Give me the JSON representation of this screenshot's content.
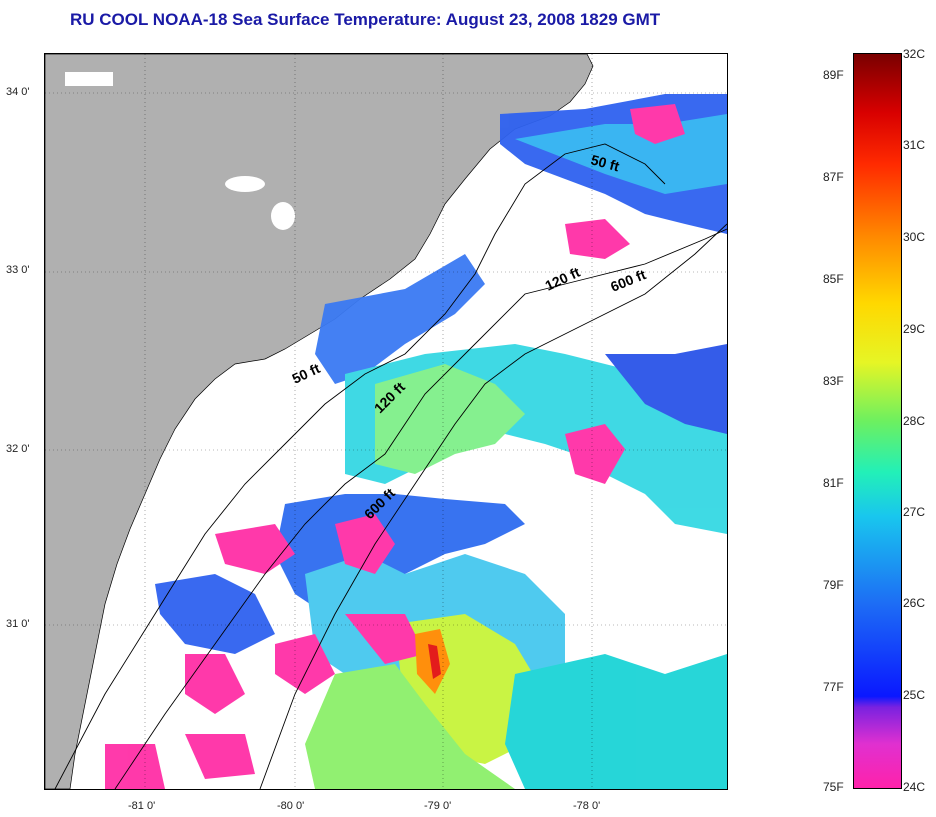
{
  "title": "RU COOL  NOAA-18  Sea Surface Temperature:  August 23, 2008 1829 GMT",
  "map": {
    "lat_labels": [
      "34 0'",
      "33 0'",
      "32 0'",
      "31 0'"
    ],
    "lon_labels": [
      "-81 0'",
      "-80 0'",
      "-79 0'",
      "-78 0'"
    ],
    "contours": [
      {
        "label": "50 ft",
        "depth_ft": 50
      },
      {
        "label": "50 ft",
        "depth_ft": 50
      },
      {
        "label": "120 ft",
        "depth_ft": 120
      },
      {
        "label": "120 ft",
        "depth_ft": 120
      },
      {
        "label": "600 ft",
        "depth_ft": 600
      },
      {
        "label": "600 ft",
        "depth_ft": 600
      }
    ],
    "land_color": "#b0b0b0",
    "cloud_color": "#ffffff"
  },
  "colorbar": {
    "celsius_labels": [
      "32C",
      "31C",
      "30C",
      "29C",
      "28C",
      "27C",
      "26C",
      "25C",
      "24C"
    ],
    "fahrenheit_labels": [
      "89F",
      "87F",
      "85F",
      "83F",
      "81F",
      "79F",
      "77F",
      "75F"
    ],
    "min_c": 24,
    "max_c": 32
  }
}
